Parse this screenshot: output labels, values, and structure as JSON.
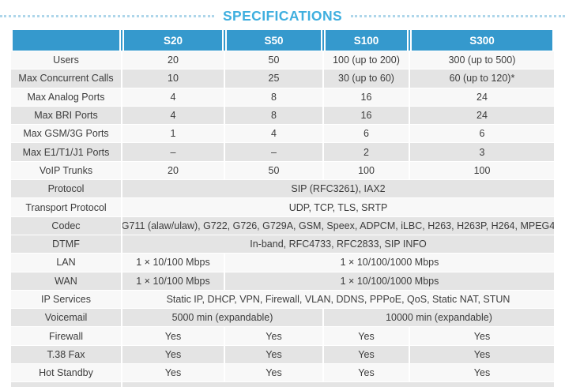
{
  "title": "SPECIFICATIONS",
  "colors": {
    "header_blue": "#3599cd",
    "title_blue": "#3fafdf",
    "dotted_line_blue": "#aed6ea",
    "row_gray": "#e4e4e4",
    "row_white": "#f8f8f8",
    "text": "#3c3c3c"
  },
  "table": {
    "headers": [
      "",
      "S20",
      "S50",
      "S100",
      "S300"
    ],
    "rows": [
      {
        "label": "Users",
        "cells": [
          "20",
          "50",
          "100 (up to 200)",
          "300 (up to 500)"
        ]
      },
      {
        "label": "Max Concurrent Calls",
        "cells": [
          "10",
          "25",
          "30 (up to 60)",
          "60 (up to 120)*"
        ]
      },
      {
        "label": "Max Analog Ports",
        "cells": [
          "4",
          "8",
          "16",
          "24"
        ]
      },
      {
        "label": "Max BRI Ports",
        "cells": [
          "4",
          "8",
          "16",
          "24"
        ]
      },
      {
        "label": "Max GSM/3G Ports",
        "cells": [
          "1",
          "4",
          "6",
          "6"
        ]
      },
      {
        "label": "Max E1/T1/J1 Ports",
        "cells": [
          "–",
          "–",
          "2",
          "3"
        ]
      },
      {
        "label": "VoIP Trunks",
        "cells": [
          "20",
          "50",
          "100",
          "100"
        ]
      },
      {
        "label": "Protocol",
        "cells": [
          "SIP (RFC3261), IAX2"
        ]
      },
      {
        "label": "Transport Protocol",
        "cells": [
          "UDP, TCP, TLS, SRTP"
        ]
      },
      {
        "label": "Codec",
        "cells": [
          "G711 (alaw/ulaw), G722, G726, G729A, GSM, Speex, ADPCM, iLBC, H263, H263P, H264, MPEG4"
        ]
      },
      {
        "label": "DTMF",
        "cells": [
          "In-band, RFC4733, RFC2833, SIP INFO"
        ]
      },
      {
        "label": "LAN",
        "cells": [
          "1 × 10/100 Mbps",
          "1 × 10/100/1000 Mbps"
        ]
      },
      {
        "label": "WAN",
        "cells": [
          "1 × 10/100 Mbps",
          "1 × 10/100/1000 Mbps"
        ]
      },
      {
        "label": "IP Services",
        "cells": [
          "Static IP, DHCP, VPN, Firewall, VLAN, DDNS, PPPoE, QoS, Static NAT, STUN"
        ]
      },
      {
        "label": "Voicemail",
        "cells": [
          "5000 min (expandable)",
          "10000 min (expandable)"
        ]
      },
      {
        "label": "Firewall",
        "cells": [
          "Yes",
          "Yes",
          "Yes",
          "Yes"
        ]
      },
      {
        "label": "T.38 Fax",
        "cells": [
          "Yes",
          "Yes",
          "Yes",
          "Yes"
        ]
      },
      {
        "label": "Hot Standby",
        "cells": [
          "Yes",
          "Yes",
          "Yes",
          "Yes"
        ]
      }
    ]
  }
}
